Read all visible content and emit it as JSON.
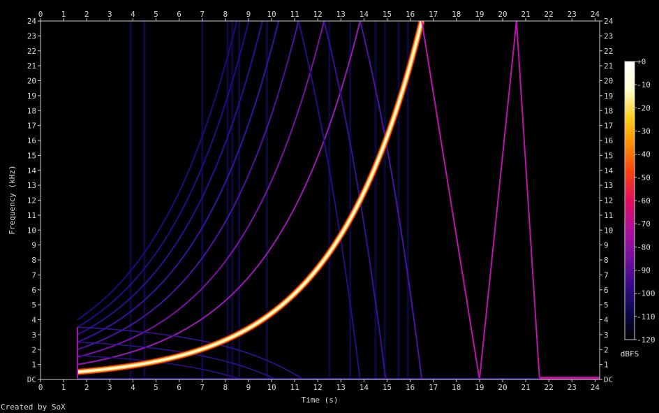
{
  "chart_data": {
    "type": "heatmap",
    "subtype": "spectrogram",
    "xlabel": "Time (s)",
    "ylabel": "Frequency (kHz)",
    "xlim": [
      0,
      24.2
    ],
    "ylim": [
      0,
      24
    ],
    "x_ticks": [
      "0",
      "1",
      "2",
      "3",
      "4",
      "5",
      "6",
      "7",
      "8",
      "9",
      "10",
      "11",
      "12",
      "13",
      "14",
      "15",
      "16",
      "17",
      "18",
      "19",
      "20",
      "21",
      "22",
      "23",
      "24"
    ],
    "y_ticks": [
      "DC",
      "1",
      "2",
      "3",
      "4",
      "5",
      "6",
      "7",
      "8",
      "9",
      "10",
      "11",
      "12",
      "13",
      "14",
      "15",
      "16",
      "17",
      "18",
      "19",
      "20",
      "21",
      "22",
      "23",
      "24"
    ],
    "colorbar": {
      "label": "dBFS",
      "range": [
        -120,
        0
      ],
      "ticks": [
        "+0",
        "-10",
        "-20",
        "-30",
        "-40",
        "-50",
        "-60",
        "-70",
        "-80",
        "-90",
        "-100",
        "-110",
        "-120"
      ],
      "colors": [
        "#000000",
        "#0a0a50",
        "#3a0a8a",
        "#7a10a0",
        "#b0109a",
        "#e01060",
        "#f84010",
        "#ff8c00",
        "#ffd020",
        "#ffffd0",
        "#ffffff"
      ]
    },
    "main_sweep": {
      "start_time": 1.6,
      "start_freq": 0.5,
      "end_time": 16.5,
      "end_freq": 24,
      "color": "#ffffe0",
      "level_dbfs": 0
    },
    "harmonics": [
      {
        "freq_factor": 2,
        "color": "#9a18b8"
      },
      {
        "freq_factor": 3,
        "color": "#7a10a8"
      },
      {
        "freq_factor": 4,
        "color": "#4a14a0"
      },
      {
        "freq_factor": 5,
        "color": "#3a10a0"
      },
      {
        "freq_factor": 6,
        "color": "#2c0c90"
      },
      {
        "freq_factor": 7,
        "color": "#240a88"
      },
      {
        "freq_factor": 8,
        "color": "#200880"
      }
    ],
    "aliases": [
      {
        "freq_factor": 2,
        "color": "#4a12a8"
      },
      {
        "freq_factor": 3,
        "color": "#3a0e98"
      },
      {
        "freq_factor": 4,
        "color": "#2a0a88"
      }
    ],
    "aliased_tail": {
      "points": [
        [
          16.5,
          24
        ],
        [
          19.0,
          0
        ],
        [
          20.6,
          24
        ],
        [
          21.6,
          0
        ]
      ],
      "color": "#c010b0"
    },
    "dc_segment": {
      "x_start": 21.6,
      "x_end": 24.2,
      "color": "#c010a0"
    },
    "vertical_bands": [
      3.9,
      4.5,
      7.0,
      8.1,
      8.3,
      8.6,
      9.8,
      12.5,
      13.4,
      14.5,
      14.9,
      15.5,
      15.9
    ],
    "credit": "Created by SoX"
  }
}
